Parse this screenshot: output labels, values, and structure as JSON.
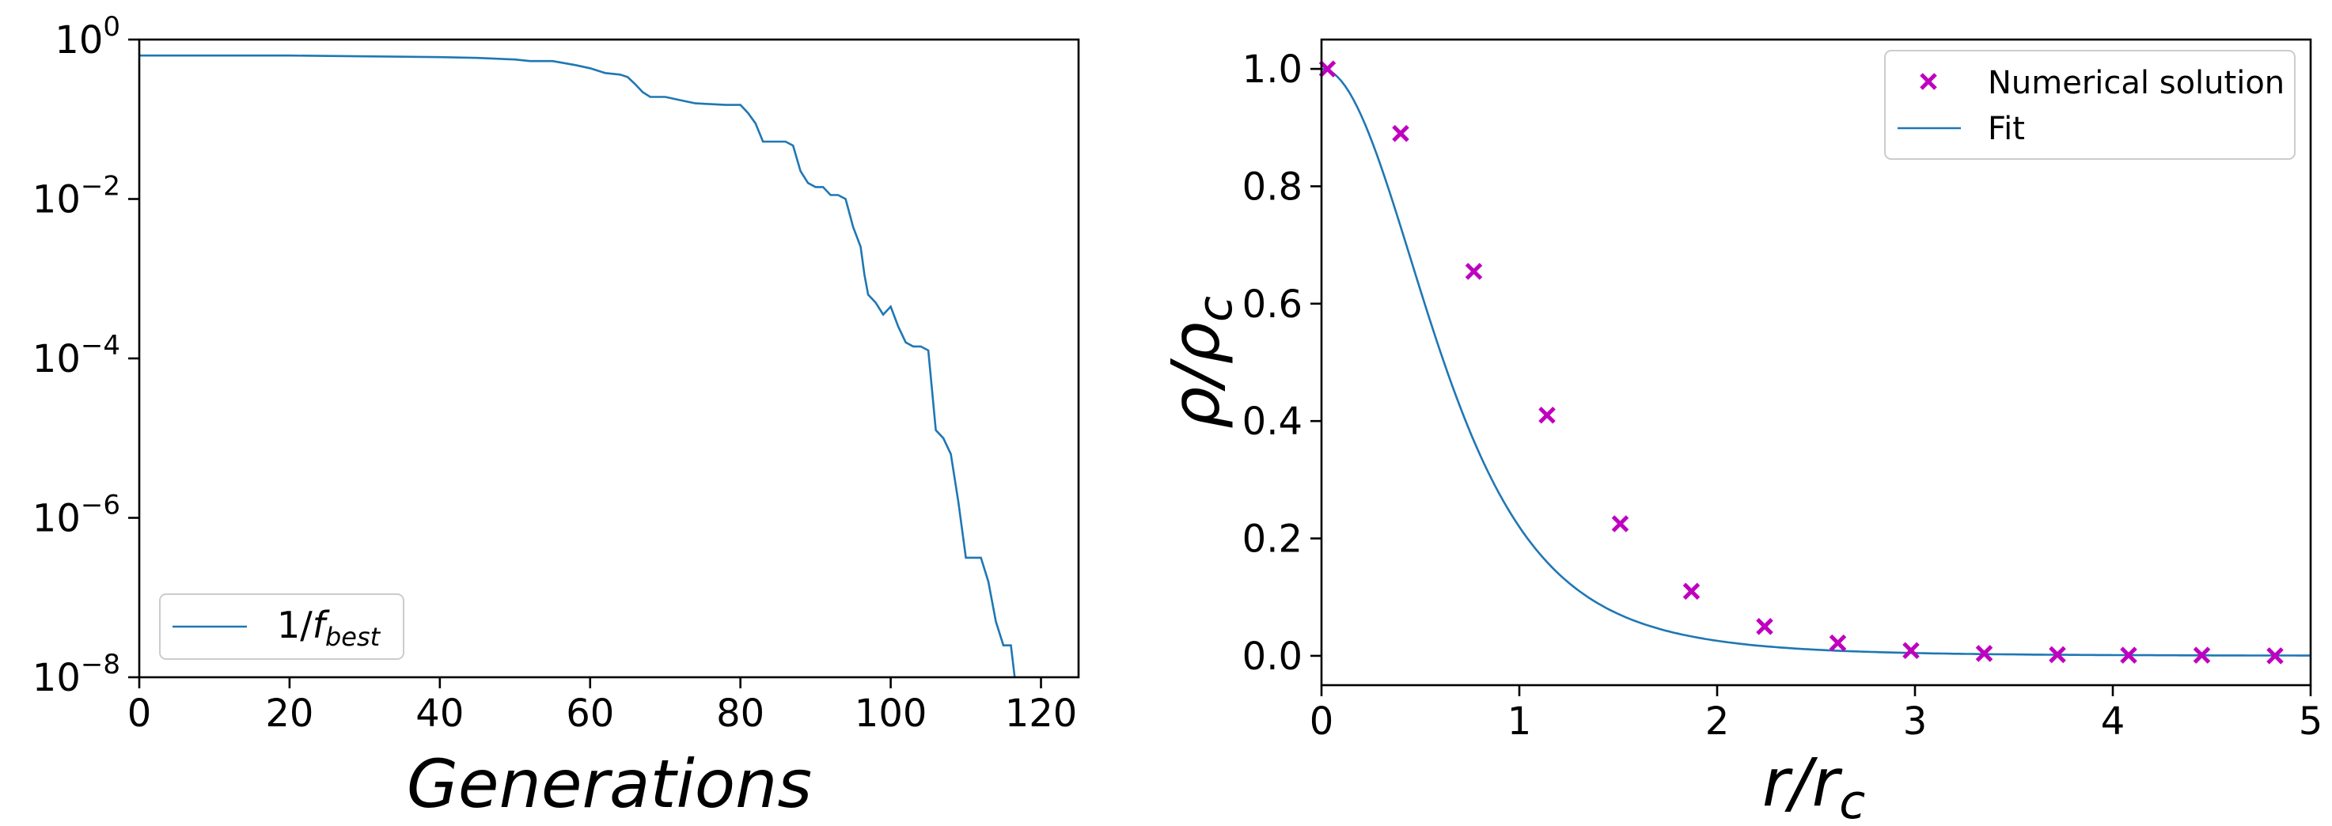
{
  "chart_data": [
    {
      "type": "line",
      "xlabel": "Generations",
      "ylabel": "",
      "yscale": "log",
      "xlim": [
        0,
        125
      ],
      "ylim_exponents": [
        -8,
        0
      ],
      "xticks": [
        "0",
        "20",
        "40",
        "60",
        "80",
        "100",
        "120"
      ],
      "yticks": [
        {
          "base": "10",
          "exp": "0",
          "value": 0
        },
        {
          "base": "10",
          "exp": "−2",
          "value": -2
        },
        {
          "base": "10",
          "exp": "−4",
          "value": -4
        },
        {
          "base": "10",
          "exp": "−6",
          "value": -6
        },
        {
          "base": "10",
          "exp": "−8",
          "value": -8
        }
      ],
      "legend": {
        "position": "lower left",
        "label_main": "1/",
        "label_f": "f",
        "label_sub": "best"
      },
      "color": "#1f77b4",
      "series": [
        {
          "name": "1/f_best",
          "x": [
            0,
            10,
            20,
            30,
            40,
            45,
            50,
            52,
            55,
            58,
            60,
            62,
            64,
            65,
            66,
            67,
            68,
            69,
            70,
            72,
            74,
            76,
            78,
            80,
            81,
            82,
            83,
            84,
            86,
            87,
            88,
            89,
            90,
            91,
            92,
            93,
            94,
            95,
            96,
            96.5,
            97,
            98,
            99,
            100,
            101,
            102,
            103,
            104,
            105,
            106,
            107,
            108,
            109,
            110,
            111,
            112,
            113,
            114,
            115,
            116,
            116.5,
            117
          ],
          "log10y": [
            -0.2,
            -0.2,
            -0.2,
            -0.21,
            -0.22,
            -0.23,
            -0.25,
            -0.27,
            -0.27,
            -0.32,
            -0.36,
            -0.42,
            -0.44,
            -0.47,
            -0.56,
            -0.66,
            -0.72,
            -0.72,
            -0.72,
            -0.76,
            -0.8,
            -0.81,
            -0.82,
            -0.82,
            -0.92,
            -1.05,
            -1.28,
            -1.28,
            -1.28,
            -1.33,
            -1.65,
            -1.8,
            -1.85,
            -1.85,
            -1.95,
            -1.95,
            -2.0,
            -2.35,
            -2.6,
            -2.95,
            -3.2,
            -3.3,
            -3.45,
            -3.35,
            -3.6,
            -3.8,
            -3.85,
            -3.85,
            -3.9,
            -4.9,
            -5.0,
            -5.2,
            -5.8,
            -6.5,
            -6.5,
            -6.5,
            -6.8,
            -7.3,
            -7.6,
            -7.6,
            -8.0,
            -8.05
          ]
        }
      ]
    },
    {
      "type": "line+scatter",
      "xlabel_main": "r/r",
      "xlabel_sub": "c",
      "ylabel_main": "ρ/ρ",
      "ylabel_sub": "c",
      "xlim": [
        0,
        5
      ],
      "ylim": [
        -0.05,
        1.05
      ],
      "xticks": [
        "0",
        "1",
        "2",
        "3",
        "4",
        "5"
      ],
      "yticks": [
        "0.0",
        "0.2",
        "0.4",
        "0.6",
        "0.8",
        "1.0"
      ],
      "legend": {
        "position": "upper right",
        "entries": [
          "Numerical solution",
          "Fit"
        ]
      },
      "scatter_color": "#bf00bf",
      "line_color": "#1f77b4",
      "series": [
        {
          "name": "Numerical solution",
          "x": [
            0.03,
            0.4,
            0.77,
            1.14,
            1.51,
            1.87,
            2.24,
            2.61,
            2.98,
            3.35,
            3.72,
            4.08,
            4.45,
            4.82
          ],
          "y": [
            1.0,
            0.89,
            0.655,
            0.41,
            0.225,
            0.11,
            0.05,
            0.022,
            0.009,
            0.004,
            0.002,
            0.001,
            0.001,
            0.0
          ]
        },
        {
          "name": "Fit",
          "function": "1/(1+r^2/1.2)^2.5"
        }
      ]
    }
  ]
}
